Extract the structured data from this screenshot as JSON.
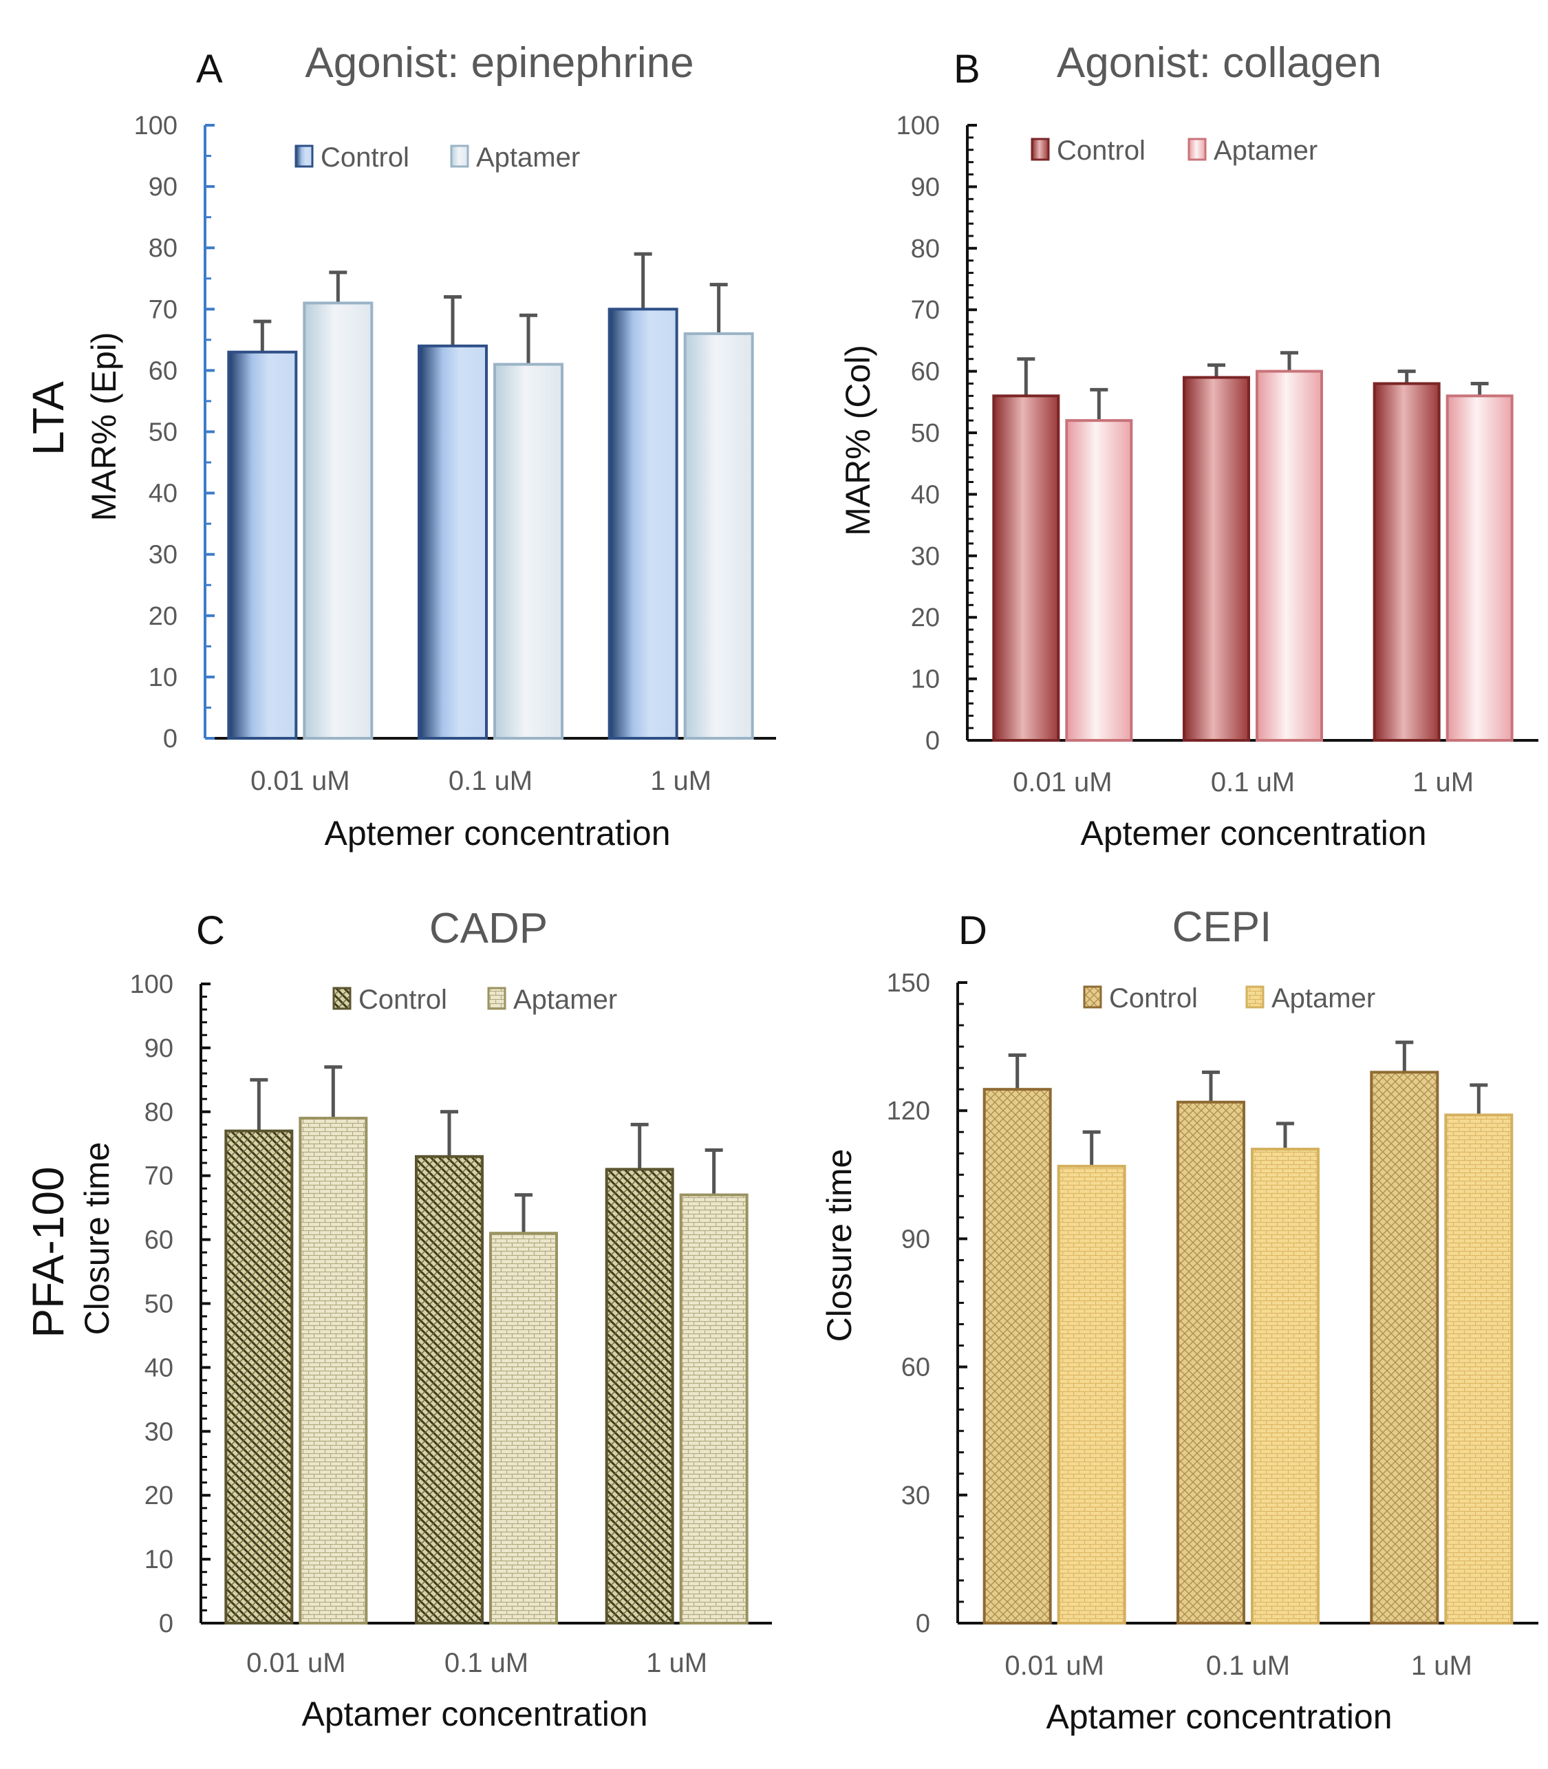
{
  "row_labels": {
    "top": "LTA",
    "bottom": "PFA-100"
  },
  "chart_data": [
    {
      "type": "bar",
      "panel": "A",
      "title": "Agonist: epinephrine",
      "xlabel": "Aptemer concentration",
      "ylabel": "MAR% (Epi)",
      "categories": [
        "0.01 uM",
        "0.1 uM",
        "1 uM"
      ],
      "ylim": [
        0,
        100
      ],
      "yticks": [
        0,
        10,
        20,
        30,
        40,
        50,
        60,
        70,
        80,
        90,
        100
      ],
      "legend_position": "top-left",
      "series": [
        {
          "name": "Control",
          "values": [
            63,
            64,
            70
          ],
          "errors": [
            5,
            8,
            9
          ],
          "color": "#4a6ea9"
        },
        {
          "name": "Aptamer",
          "values": [
            71,
            61,
            66
          ],
          "errors": [
            5,
            8,
            8
          ],
          "color": "#a9c0cf"
        }
      ]
    },
    {
      "type": "bar",
      "panel": "B",
      "title": "Agonist: collagen",
      "xlabel": "Aptemer concentration",
      "ylabel": "MAR% (Col)",
      "categories": [
        "0.01 uM",
        "0.1 uM",
        "1 uM"
      ],
      "ylim": [
        0,
        100
      ],
      "yticks": [
        0,
        10,
        20,
        30,
        40,
        50,
        60,
        70,
        80,
        90,
        100
      ],
      "legend_position": "top-left",
      "series": [
        {
          "name": "Control",
          "values": [
            56,
            59,
            58
          ],
          "errors": [
            6,
            2,
            2
          ],
          "color": "#9e3a3a"
        },
        {
          "name": "Aptamer",
          "values": [
            52,
            60,
            56
          ],
          "errors": [
            5,
            3,
            2
          ],
          "color": "#d98a8f"
        }
      ]
    },
    {
      "type": "bar",
      "panel": "C",
      "title": "CADP",
      "xlabel": "Aptamer concentration",
      "ylabel": "Closure time",
      "categories": [
        "0.01 uM",
        "0.1 uM",
        "1 uM"
      ],
      "ylim": [
        0,
        100
      ],
      "yticks": [
        0,
        10,
        20,
        30,
        40,
        50,
        60,
        70,
        80,
        90,
        100
      ],
      "legend_position": "top-center",
      "series": [
        {
          "name": "Control",
          "values": [
            77,
            73,
            71
          ],
          "errors": [
            8,
            7,
            7
          ],
          "color": "#5b5530"
        },
        {
          "name": "Aptamer",
          "values": [
            79,
            61,
            67
          ],
          "errors": [
            8,
            6,
            7
          ],
          "color": "#9a9360"
        }
      ]
    },
    {
      "type": "bar",
      "panel": "D",
      "title": "CEPI",
      "xlabel": "Aptamer concentration",
      "ylabel": "Closure time",
      "categories": [
        "0.01 uM",
        "0.1 uM",
        "1 uM"
      ],
      "ylim": [
        0,
        150
      ],
      "yticks": [
        0,
        30,
        60,
        90,
        120,
        150
      ],
      "legend_position": "top-center",
      "series": [
        {
          "name": "Control",
          "values": [
            125,
            122,
            129
          ],
          "errors": [
            8,
            7,
            7
          ],
          "color": "#a87a3c"
        },
        {
          "name": "Aptamer",
          "values": [
            107,
            111,
            119
          ],
          "errors": [
            8,
            6,
            7
          ],
          "color": "#e6c06a"
        }
      ]
    }
  ]
}
